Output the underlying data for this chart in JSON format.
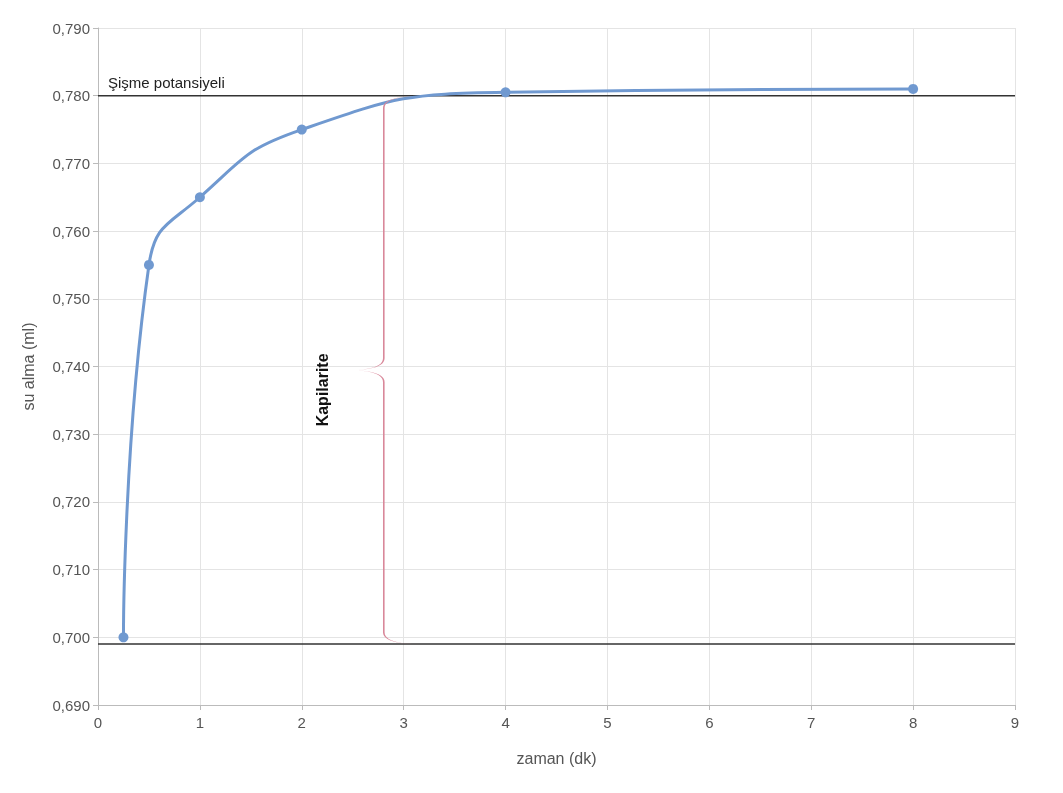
{
  "chart_data": {
    "type": "line",
    "xlabel": "zaman (dk)",
    "ylabel": "su alma (ml)",
    "x": [
      0.25,
      0.5,
      1,
      2,
      4,
      8
    ],
    "series": [
      {
        "color": "#7099d0",
        "values": [
          0.7,
          0.755,
          0.765,
          0.775,
          0.7805,
          0.781
        ]
      }
    ],
    "xlim": [
      0,
      9
    ],
    "xticks": [
      0,
      1,
      2,
      3,
      4,
      5,
      6,
      7,
      8,
      9
    ],
    "ylim": [
      0.69,
      0.79
    ],
    "yticks": [
      {
        "value": 0.69,
        "label": "0,690"
      },
      {
        "value": 0.7,
        "label": "0,700"
      },
      {
        "value": 0.71,
        "label": "0,710"
      },
      {
        "value": 0.72,
        "label": "0,720"
      },
      {
        "value": 0.73,
        "label": "0,730"
      },
      {
        "value": 0.74,
        "label": "0,740"
      },
      {
        "value": 0.75,
        "label": "0,750"
      },
      {
        "value": 0.76,
        "label": "0,760"
      },
      {
        "value": 0.77,
        "label": "0,770"
      },
      {
        "value": 0.78,
        "label": "0,780"
      },
      {
        "value": 0.79,
        "label": "0,790"
      }
    ],
    "ref_lines": [
      {
        "axis": "y",
        "value": 0.78,
        "label": "Şişme potansiyeli",
        "color": "#333333"
      },
      {
        "axis": "y",
        "value": 0.699,
        "color": "#333333"
      }
    ],
    "annotations": [
      "Kapilarite"
    ],
    "grid": true,
    "marker": "circle",
    "line_style": "solid"
  }
}
